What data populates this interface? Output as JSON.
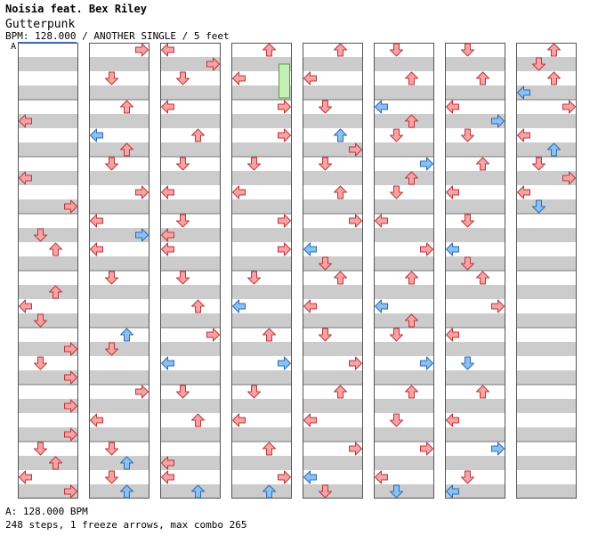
{
  "song": {
    "artist": "Noisia feat. Bex Riley",
    "title": "Gutterpunk",
    "info": "BPM: 128.000 / ANOTHER SINGLE / 5 feet"
  },
  "marker_label": "A",
  "footer": {
    "bpm_note": "A: 128.000 BPM",
    "stats": "248 steps, 1 freeze arrows, max combo 265"
  },
  "colors": {
    "note_red": "#f4a4a8",
    "note_red_stroke": "#c03434",
    "note_blue": "#8cc0f0",
    "note_blue_stroke": "#2a6ab8",
    "freeze": "#c4f0b4",
    "stripe": "#cccccc"
  },
  "chart_data": {
    "type": "step-chart",
    "columns": 8,
    "lanes": [
      "left",
      "down",
      "up",
      "right"
    ],
    "notes": [
      [
        0,
        5,
        "l",
        "r"
      ],
      [
        0,
        9,
        "l",
        "r"
      ],
      [
        0,
        11,
        "r",
        "r"
      ],
      [
        0,
        13,
        "d",
        "r"
      ],
      [
        0,
        14,
        "u",
        "r"
      ],
      [
        0,
        17,
        "u",
        "r"
      ],
      [
        0,
        18,
        "l",
        "r"
      ],
      [
        0,
        19,
        "d",
        "r"
      ],
      [
        0,
        21,
        "r",
        "r"
      ],
      [
        0,
        22,
        "d",
        "r"
      ],
      [
        0,
        23,
        "r",
        "r"
      ],
      [
        0,
        25,
        "r",
        "r"
      ],
      [
        0,
        27,
        "r",
        "r"
      ],
      [
        0,
        28,
        "d",
        "r"
      ],
      [
        0,
        29,
        "u",
        "r"
      ],
      [
        0,
        30,
        "l",
        "r"
      ],
      [
        0,
        31,
        "r",
        "r"
      ],
      [
        1,
        0,
        "r",
        "r"
      ],
      [
        1,
        2,
        "d",
        "r"
      ],
      [
        1,
        4,
        "u",
        "r"
      ],
      [
        1,
        6,
        "l",
        "b"
      ],
      [
        1,
        7,
        "u",
        "r"
      ],
      [
        1,
        8,
        "d",
        "r"
      ],
      [
        1,
        10,
        "r",
        "r"
      ],
      [
        1,
        12,
        "l",
        "r"
      ],
      [
        1,
        13,
        "r",
        "b"
      ],
      [
        1,
        14,
        "l",
        "r"
      ],
      [
        1,
        16,
        "d",
        "r"
      ],
      [
        1,
        20,
        "u",
        "b"
      ],
      [
        1,
        21,
        "d",
        "r"
      ],
      [
        1,
        24,
        "r",
        "r"
      ],
      [
        1,
        26,
        "l",
        "r"
      ],
      [
        1,
        28,
        "d",
        "r"
      ],
      [
        1,
        29,
        "u",
        "b"
      ],
      [
        1,
        30,
        "d",
        "r"
      ],
      [
        1,
        31,
        "u",
        "b"
      ],
      [
        2,
        0,
        "l",
        "r"
      ],
      [
        2,
        1,
        "r",
        "r"
      ],
      [
        2,
        2,
        "d",
        "r"
      ],
      [
        2,
        4,
        "l",
        "r"
      ],
      [
        2,
        6,
        "u",
        "r"
      ],
      [
        2,
        8,
        "d",
        "r"
      ],
      [
        2,
        10,
        "l",
        "r"
      ],
      [
        2,
        12,
        "d",
        "r"
      ],
      [
        2,
        13,
        "l",
        "r"
      ],
      [
        2,
        14,
        "l",
        "r"
      ],
      [
        2,
        16,
        "d",
        "r"
      ],
      [
        2,
        18,
        "u",
        "r"
      ],
      [
        2,
        20,
        "r",
        "r"
      ],
      [
        2,
        22,
        "l",
        "b"
      ],
      [
        2,
        24,
        "d",
        "r"
      ],
      [
        2,
        26,
        "u",
        "r"
      ],
      [
        2,
        29,
        "l",
        "r"
      ],
      [
        2,
        30,
        "l",
        "r"
      ],
      [
        2,
        31,
        "u",
        "b"
      ],
      [
        3,
        0,
        "u",
        "r"
      ],
      [
        3,
        2,
        "l",
        "r"
      ],
      [
        3,
        4,
        "r",
        "r"
      ],
      [
        3,
        6,
        "r",
        "r"
      ],
      [
        3,
        8,
        "d",
        "r"
      ],
      [
        3,
        10,
        "l",
        "r"
      ],
      [
        3,
        12,
        "r",
        "r"
      ],
      [
        3,
        14,
        "r",
        "r"
      ],
      [
        3,
        16,
        "d",
        "r"
      ],
      [
        3,
        18,
        "l",
        "b"
      ],
      [
        3,
        20,
        "u",
        "r"
      ],
      [
        3,
        22,
        "r",
        "b"
      ],
      [
        3,
        24,
        "d",
        "r"
      ],
      [
        3,
        26,
        "l",
        "r"
      ],
      [
        3,
        28,
        "u",
        "r"
      ],
      [
        3,
        30,
        "r",
        "r"
      ],
      [
        3,
        31,
        "u",
        "b"
      ],
      [
        4,
        0,
        "u",
        "r"
      ],
      [
        4,
        2,
        "l",
        "r"
      ],
      [
        4,
        4,
        "d",
        "r"
      ],
      [
        4,
        6,
        "u",
        "b"
      ],
      [
        4,
        7,
        "r",
        "r"
      ],
      [
        4,
        8,
        "d",
        "r"
      ],
      [
        4,
        10,
        "u",
        "r"
      ],
      [
        4,
        12,
        "r",
        "r"
      ],
      [
        4,
        14,
        "l",
        "b"
      ],
      [
        4,
        15,
        "d",
        "r"
      ],
      [
        4,
        16,
        "u",
        "r"
      ],
      [
        4,
        18,
        "l",
        "r"
      ],
      [
        4,
        20,
        "d",
        "r"
      ],
      [
        4,
        22,
        "r",
        "r"
      ],
      [
        4,
        24,
        "u",
        "r"
      ],
      [
        4,
        26,
        "l",
        "r"
      ],
      [
        4,
        28,
        "r",
        "r"
      ],
      [
        4,
        30,
        "l",
        "b"
      ],
      [
        4,
        31,
        "d",
        "r"
      ],
      [
        5,
        0,
        "d",
        "r"
      ],
      [
        5,
        2,
        "u",
        "r"
      ],
      [
        5,
        4,
        "l",
        "b"
      ],
      [
        5,
        5,
        "u",
        "r"
      ],
      [
        5,
        6,
        "d",
        "r"
      ],
      [
        5,
        8,
        "r",
        "b"
      ],
      [
        5,
        9,
        "u",
        "r"
      ],
      [
        5,
        10,
        "d",
        "r"
      ],
      [
        5,
        12,
        "l",
        "r"
      ],
      [
        5,
        14,
        "r",
        "r"
      ],
      [
        5,
        16,
        "u",
        "r"
      ],
      [
        5,
        18,
        "l",
        "b"
      ],
      [
        5,
        19,
        "u",
        "r"
      ],
      [
        5,
        20,
        "d",
        "r"
      ],
      [
        5,
        22,
        "r",
        "b"
      ],
      [
        5,
        24,
        "u",
        "r"
      ],
      [
        5,
        26,
        "d",
        "r"
      ],
      [
        5,
        28,
        "r",
        "r"
      ],
      [
        5,
        30,
        "l",
        "r"
      ],
      [
        5,
        31,
        "d",
        "b"
      ],
      [
        6,
        0,
        "d",
        "r"
      ],
      [
        6,
        2,
        "u",
        "r"
      ],
      [
        6,
        4,
        "l",
        "r"
      ],
      [
        6,
        5,
        "r",
        "b"
      ],
      [
        6,
        6,
        "d",
        "r"
      ],
      [
        6,
        8,
        "u",
        "r"
      ],
      [
        6,
        10,
        "l",
        "r"
      ],
      [
        6,
        12,
        "d",
        "r"
      ],
      [
        6,
        14,
        "l",
        "b"
      ],
      [
        6,
        15,
        "d",
        "r"
      ],
      [
        6,
        16,
        "u",
        "r"
      ],
      [
        6,
        18,
        "r",
        "r"
      ],
      [
        6,
        20,
        "l",
        "r"
      ],
      [
        6,
        22,
        "d",
        "b"
      ],
      [
        6,
        24,
        "u",
        "r"
      ],
      [
        6,
        26,
        "l",
        "r"
      ],
      [
        6,
        28,
        "r",
        "b"
      ],
      [
        6,
        30,
        "d",
        "r"
      ],
      [
        6,
        31,
        "l",
        "b"
      ],
      [
        7,
        0,
        "u",
        "r"
      ],
      [
        7,
        1,
        "d",
        "r"
      ],
      [
        7,
        2,
        "u",
        "r"
      ],
      [
        7,
        3,
        "l",
        "b"
      ],
      [
        7,
        4,
        "r",
        "r"
      ],
      [
        7,
        6,
        "l",
        "r"
      ],
      [
        7,
        7,
        "u",
        "b"
      ],
      [
        7,
        8,
        "d",
        "r"
      ],
      [
        7,
        9,
        "r",
        "r"
      ],
      [
        7,
        10,
        "l",
        "r"
      ],
      [
        7,
        11,
        "d",
        "b"
      ]
    ],
    "freezes": [
      [
        3,
        1,
        3,
        "r"
      ]
    ]
  }
}
